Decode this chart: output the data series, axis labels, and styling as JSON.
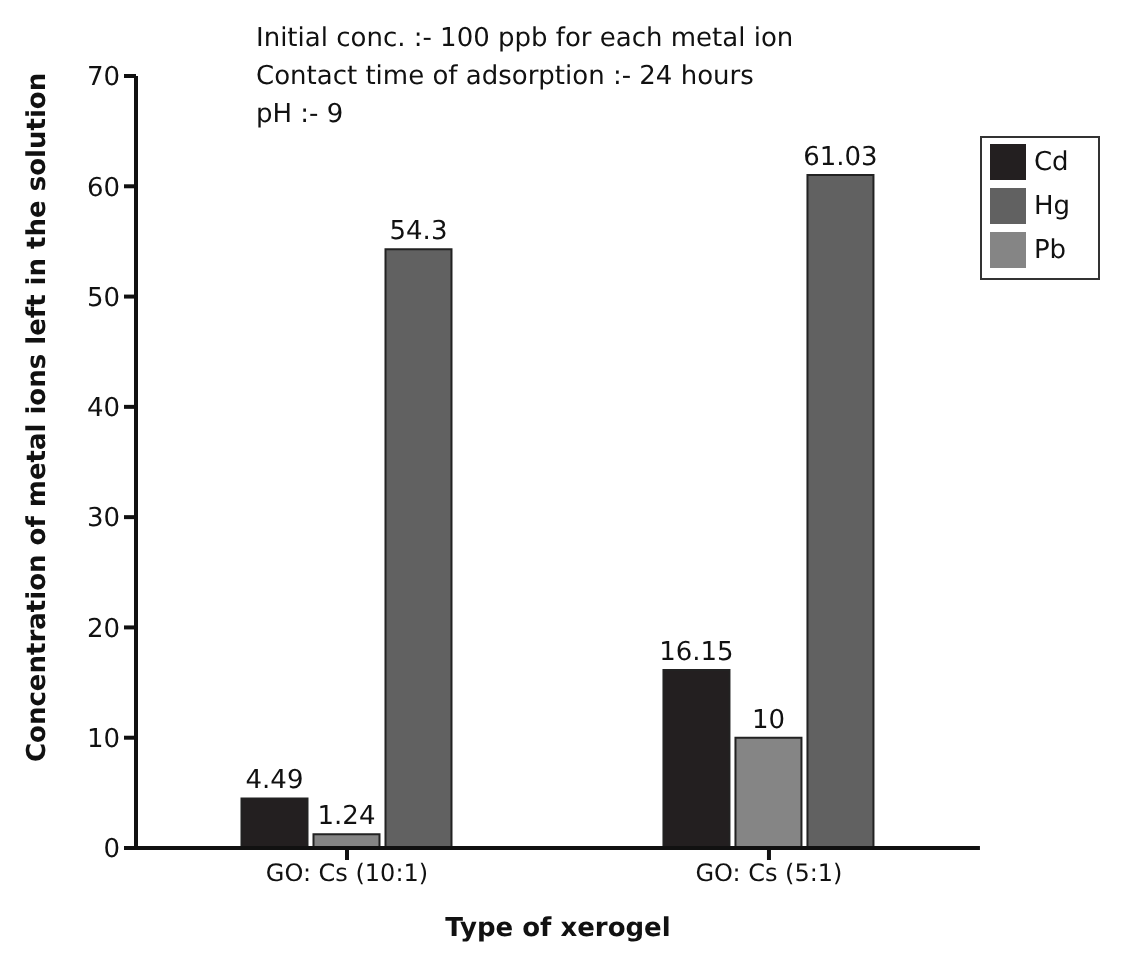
{
  "chart_data": {
    "type": "bar",
    "xlabel": "Type of xerogel",
    "ylabel": "Concentration of metal ions left in the solution",
    "categories": [
      "GO: Cs (10:1)",
      "GO: Cs (5:1)"
    ],
    "series": [
      {
        "name": "Cd",
        "color": "#231f20",
        "values": [
          4.49,
          16.15
        ]
      },
      {
        "name": "Pb",
        "color": "#858585",
        "values": [
          1.24,
          10
        ]
      },
      {
        "name": "Hg",
        "color": "#616161",
        "values": [
          54.3,
          61.03
        ]
      }
    ],
    "ylim": [
      0,
      70
    ],
    "yticks": [
      0,
      10,
      20,
      30,
      40,
      50,
      60,
      70
    ],
    "data_labels": true,
    "legend": "top right",
    "grid": false,
    "annotations": [
      "Initial conc. :- 100 ppb for each metal ion",
      "Contact time of adsorption :- 24 hours",
      "pH :- 9"
    ]
  }
}
